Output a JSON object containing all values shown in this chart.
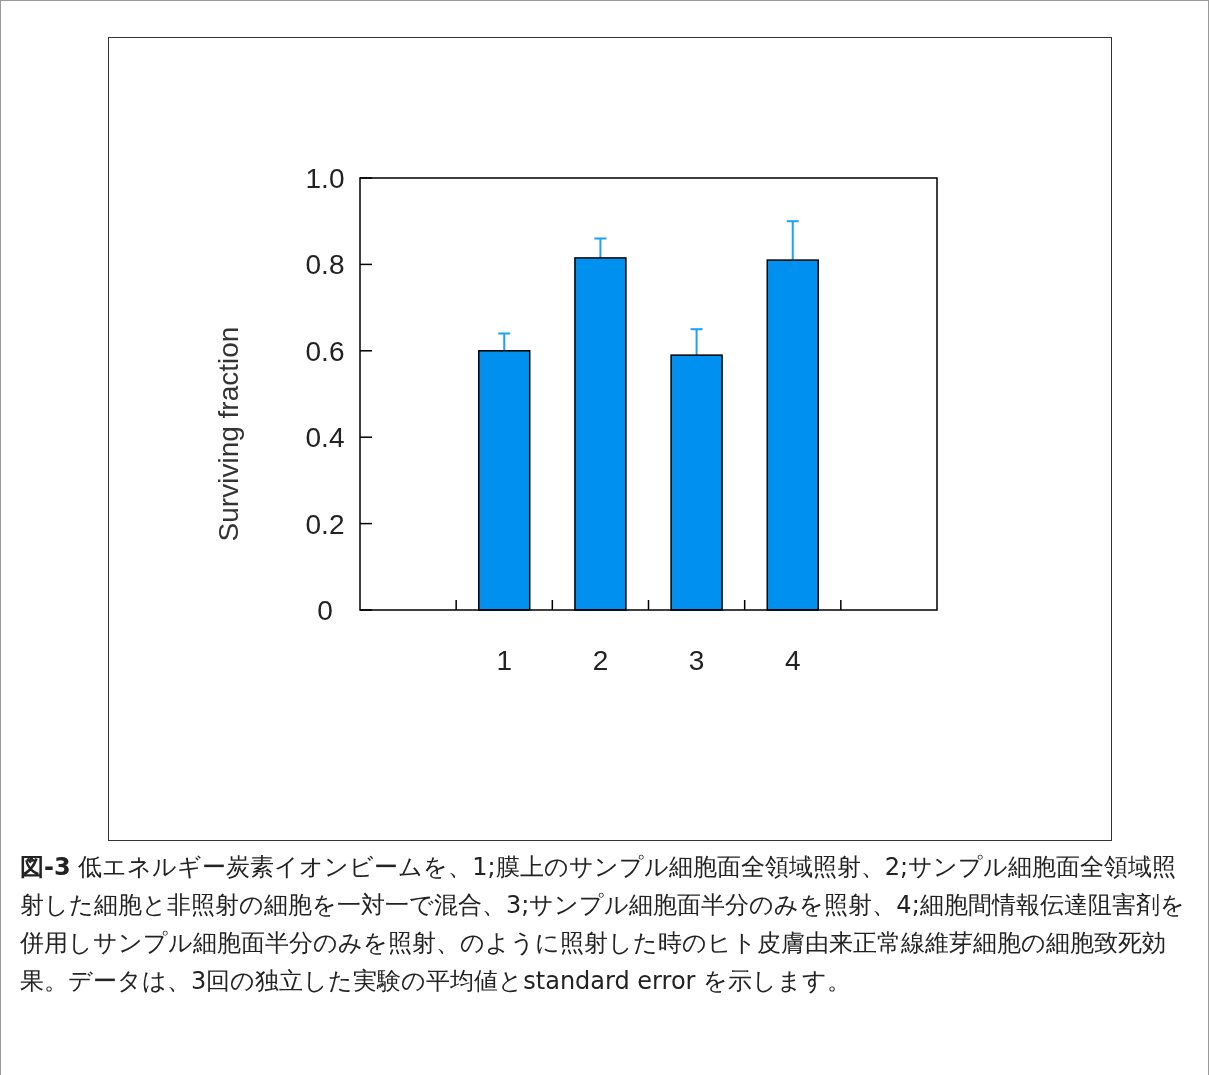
{
  "chart_data": {
    "type": "bar",
    "ylabel": "Surviving fraction",
    "categories": [
      "1",
      "2",
      "3",
      "4"
    ],
    "values": [
      0.6,
      0.815,
      0.59,
      0.81
    ],
    "errors": [
      [
        0.6,
        0.64
      ],
      [
        0.815,
        0.86
      ],
      [
        0.59,
        0.65
      ],
      [
        0.81,
        0.9
      ]
    ],
    "color": "#0090f0",
    "ylim": [
      0,
      1
    ],
    "yticks": [
      0,
      0.2,
      0.4,
      0.6,
      0.8,
      {
        "value": 1,
        "label": "1.0"
      }
    ],
    "grid": false,
    "annotations": [
      "**図-3** 低エネルギー炭素イオンビームを、1;膜上のサンプル細胞面全領域照射、2;サンプル細胞面全領域照射した細胞と非照射の細胞を一対一で混合、3;サンプル細胞面半分のみを照射、4;細胞間情報伝達阻害剤を併用しサンプル細胞面半分のみを照射、のように照射した時のヒト皮膚由来正常線維芽細胞の細胞致死効果。データは、3回の独立した実験の平均値とstandard error を示します。"
    ]
  }
}
